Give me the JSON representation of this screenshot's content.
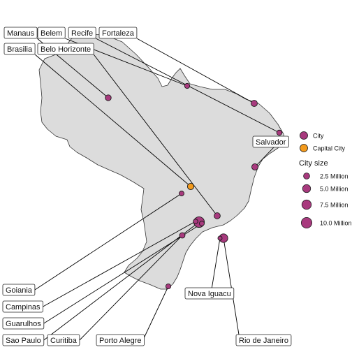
{
  "colors": {
    "land": "#dcdcdc",
    "land_stroke": "#333333",
    "city": "#a83a7e",
    "capital": "#f39a1c",
    "point_stroke": "#1a1a1a",
    "leader": "#000000",
    "label_bg": "#ffffff",
    "label_border": "#222222"
  },
  "map": {
    "region": "Brazil",
    "cities": [
      {
        "name": "Manaus",
        "population_millions": 2.2,
        "capital": false
      },
      {
        "name": "Belem",
        "population_millions": 1.5,
        "capital": false
      },
      {
        "name": "Recife",
        "population_millions": 1.6,
        "capital": false
      },
      {
        "name": "Fortaleza",
        "population_millions": 2.6,
        "capital": false
      },
      {
        "name": "Brasilia",
        "population_millions": 2.8,
        "capital": true
      },
      {
        "name": "Belo Horizonte",
        "population_millions": 2.5,
        "capital": false
      },
      {
        "name": "Salvador",
        "population_millions": 2.7,
        "capital": false
      },
      {
        "name": "Goiania",
        "population_millions": 1.3,
        "capital": false
      },
      {
        "name": "Campinas",
        "population_millions": 1.1,
        "capital": false
      },
      {
        "name": "Guarulhos",
        "population_millions": 1.3,
        "capital": false
      },
      {
        "name": "Sao Paulo",
        "population_millions": 10.0,
        "capital": false
      },
      {
        "name": "Curitiba",
        "population_millions": 1.8,
        "capital": false
      },
      {
        "name": "Porto Alegre",
        "population_millions": 1.4,
        "capital": false
      },
      {
        "name": "Nova Iguacu",
        "population_millions": 0.8,
        "capital": false
      },
      {
        "name": "Rio de Janeiro",
        "population_millions": 6.0,
        "capital": false
      }
    ]
  },
  "legend": {
    "color_items": [
      "City",
      "Capital City"
    ],
    "size_title": "City size",
    "size_items": [
      {
        "label": "2.5 Million",
        "value": 2.5
      },
      {
        "label": "5.0 Million",
        "value": 5.0
      },
      {
        "label": "7.5 Million",
        "value": 7.5
      },
      {
        "label": "10.0 Million",
        "value": 10.0
      }
    ]
  }
}
